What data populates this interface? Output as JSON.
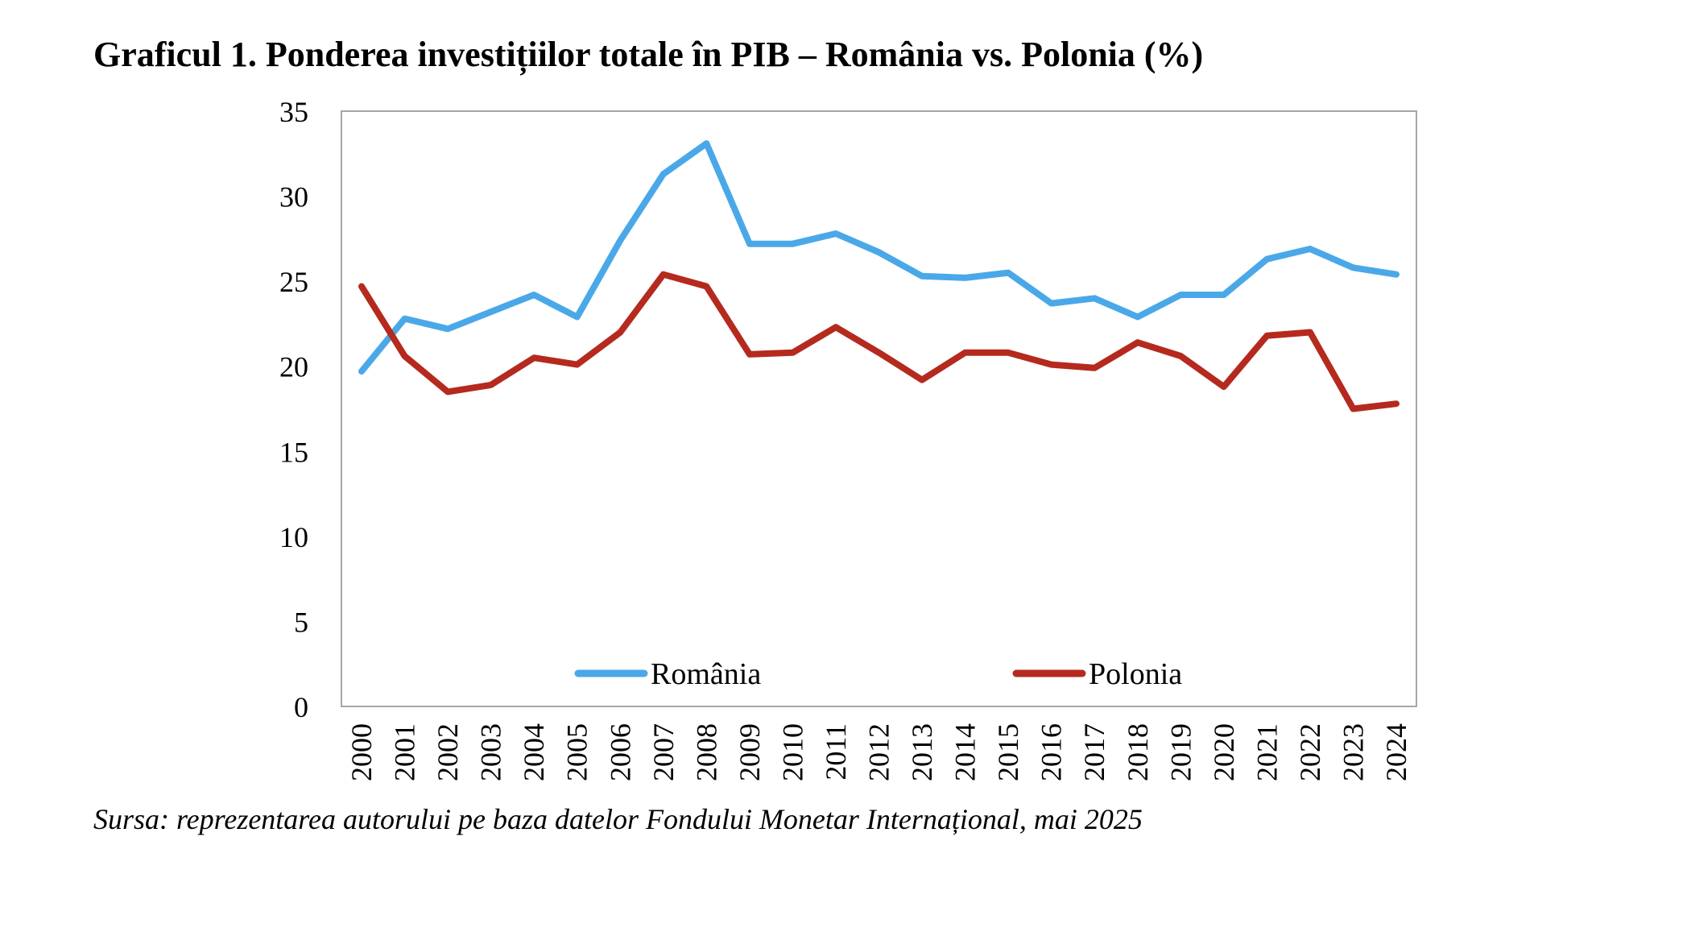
{
  "title": "Graficul 1. Ponderea investițiilor totale în PIB – România vs. Polonia (%)",
  "source": "Sursa: reprezentarea autorului pe baza datelor Fondului Monetar Internațional, mai 2025",
  "colors": {
    "romania": "#4aa8e8",
    "polonia": "#b52a1e",
    "frame": "#a6a6a6"
  },
  "chart_data": {
    "type": "line",
    "title": "Graficul 1. Ponderea investițiilor totale în PIB – România vs. Polonia (%)",
    "xlabel": "",
    "ylabel": "",
    "categories": [
      "2000",
      "2001",
      "2002",
      "2003",
      "2004",
      "2005",
      "2006",
      "2007",
      "2008",
      "2009",
      "2010",
      "2011",
      "2012",
      "2013",
      "2014",
      "2015",
      "2016",
      "2017",
      "2018",
      "2019",
      "2020",
      "2021",
      "2022",
      "2023",
      "2024"
    ],
    "y_ticks": [
      0,
      5,
      10,
      15,
      20,
      25,
      30,
      35
    ],
    "ylim": [
      0,
      35
    ],
    "grid": false,
    "legend_position": "bottom-inside",
    "series": [
      {
        "name": "România",
        "color": "#4aa8e8",
        "values": [
          19.7,
          22.8,
          22.2,
          23.2,
          24.2,
          22.9,
          27.4,
          31.3,
          33.1,
          27.2,
          27.2,
          27.8,
          26.7,
          25.3,
          25.2,
          25.5,
          23.7,
          24.0,
          22.9,
          24.2,
          24.2,
          26.3,
          26.9,
          25.8,
          25.4
        ]
      },
      {
        "name": "Polonia",
        "color": "#b52a1e",
        "values": [
          24.7,
          20.6,
          18.5,
          18.9,
          20.5,
          20.1,
          22.0,
          25.4,
          24.7,
          20.7,
          20.8,
          22.3,
          20.8,
          19.2,
          20.8,
          20.8,
          20.1,
          19.9,
          21.4,
          20.6,
          18.8,
          21.8,
          22.0,
          17.5,
          17.8
        ]
      }
    ]
  }
}
